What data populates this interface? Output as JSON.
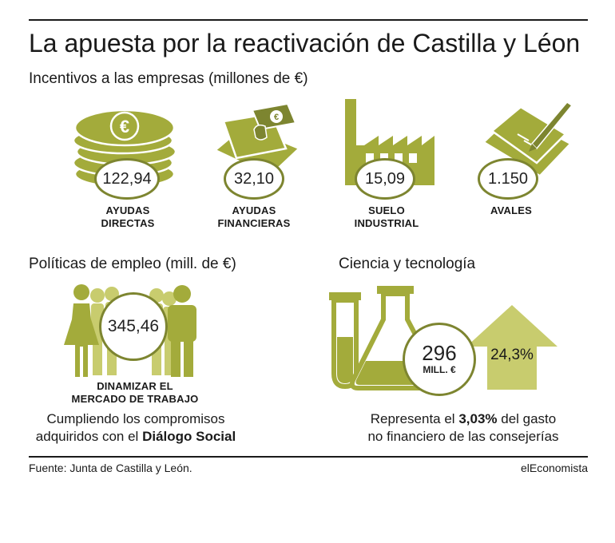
{
  "title": "La apuesta por la reactivación de Castilla y Léon",
  "subtitle": "Incentivos a las empresas (millones de €)",
  "colors": {
    "olive": "#a3ab3b",
    "olive_dark": "#7d8530",
    "olive_light": "#c8cc6e",
    "text": "#1a1a1a"
  },
  "chart_data": [
    {
      "type": "table",
      "title": "Incentivos a las empresas (millones de €)",
      "categories": [
        "AYUDAS DIRECTAS",
        "AYUDAS FINANCIERAS",
        "SUELO INDUSTRIAL",
        "AVALES"
      ],
      "category_lines": [
        [
          "AYUDAS",
          "DIRECTAS"
        ],
        [
          "AYUDAS",
          "FINANCIERAS"
        ],
        [
          "SUELO",
          "INDUSTRIAL"
        ],
        [
          "AVALES"
        ]
      ],
      "values": [
        "122,94",
        "32,10",
        "15,09",
        "1.150"
      ],
      "icons": [
        "coins-icon",
        "money-bill-icon",
        "factory-icon",
        "contract-pen-icon"
      ]
    },
    {
      "type": "table",
      "title": "Políticas de empleo (mill. de €)",
      "categories": [
        "DINAMIZAR EL MERCADO DE TRABAJO"
      ],
      "category_lines": [
        [
          "DINAMIZAR EL",
          "MERCADO DE TRABAJO"
        ]
      ],
      "values": [
        "345,46"
      ],
      "note": {
        "prefix": "Cumpliendo los compromisos adquiridos con el ",
        "bold": "Diálogo Social",
        "line1": "Cumpliendo los compromisos",
        "line2_prefix": "adquiridos con el "
      },
      "icons": [
        "people-icon"
      ]
    },
    {
      "type": "table",
      "title": "Ciencia y tecnología",
      "values": [
        "296"
      ],
      "unit": "MILL. €",
      "increase": "24,3%",
      "note": {
        "line1_prefix": "Representa el ",
        "line1_bold": "3,03%",
        "line1_suffix": " del gasto",
        "line2": "no financiero de las consejerías"
      },
      "icons": [
        "lab-flask-icon",
        "up-arrow-icon"
      ]
    }
  ],
  "footer": {
    "source": "Fuente: Junta de Castilla y León.",
    "brand": "elEconomista"
  }
}
